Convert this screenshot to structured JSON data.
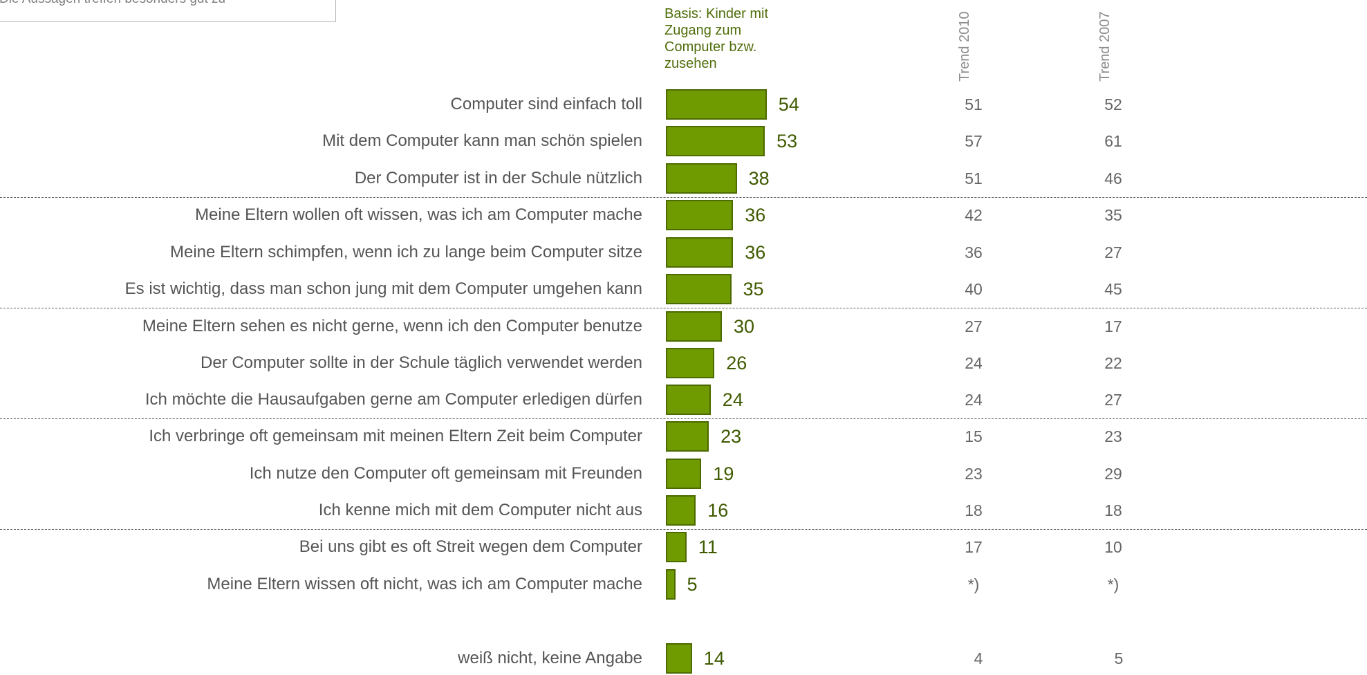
{
  "legend_caption": "Die Aussagen treffen besonders gut zu -",
  "basis_note": "Basis: Kinder mit Zugang zum Computer bzw. zusehen",
  "trend_headers": [
    "Trend 2010",
    "Trend 2007"
  ],
  "colors": {
    "bar_fill": "#6f9a00",
    "bar_border": "#4c6a00",
    "value_text": "#3f5a00",
    "basis_text": "#4f6d0a"
  },
  "chart_data": {
    "type": "bar",
    "orientation": "horizontal",
    "unit": "%",
    "categories": [
      "Computer sind einfach toll",
      "Mit dem Computer kann man schön spielen",
      "Der Computer ist in der Schule  nützlich",
      "Meine Eltern wollen oft wissen, was ich am Computer mache",
      "Meine Eltern schimpfen, wenn ich zu lange beim Computer sitze",
      "Es ist wichtig, dass man schon  jung mit dem Computer umgehen kann",
      "Meine Eltern sehen es nicht gerne, wenn ich den Computer benutze",
      "Der Computer sollte in der Schule täglich verwendet werden",
      "Ich möchte die Hausaufgaben gerne am Computer erledigen dürfen",
      "Ich verbringe oft gemeinsam mit meinen Eltern Zeit beim Computer",
      "Ich nutze den Computer oft gemeinsam mit Freunden",
      "Ich kenne mich mit dem Computer nicht aus",
      "Bei uns gibt es oft Streit wegen dem Computer",
      "Meine Eltern wissen oft nicht, was ich am Computer mache",
      "weiß nicht, keine Angabe"
    ],
    "values": [
      54,
      53,
      38,
      36,
      36,
      35,
      30,
      26,
      24,
      23,
      19,
      16,
      11,
      5,
      14
    ],
    "value_labels": [
      "54",
      "53",
      "38",
      "36",
      "36",
      "35",
      "30",
      "26",
      "24",
      "23",
      "19",
      "16",
      "11",
      "5",
      "14"
    ],
    "trend_2010": [
      "51",
      "57",
      "51",
      "42",
      "36",
      "40",
      "27",
      "24",
      "24",
      "15",
      "23",
      "18",
      "17",
      "*)",
      "4"
    ],
    "trend_2007": [
      "52",
      "61",
      "46",
      "35",
      "27",
      "45",
      "17",
      "22",
      "27",
      "23",
      "29",
      "18",
      "10",
      "*)",
      "5"
    ],
    "groups_after_index": [
      2,
      5,
      8,
      11
    ]
  }
}
